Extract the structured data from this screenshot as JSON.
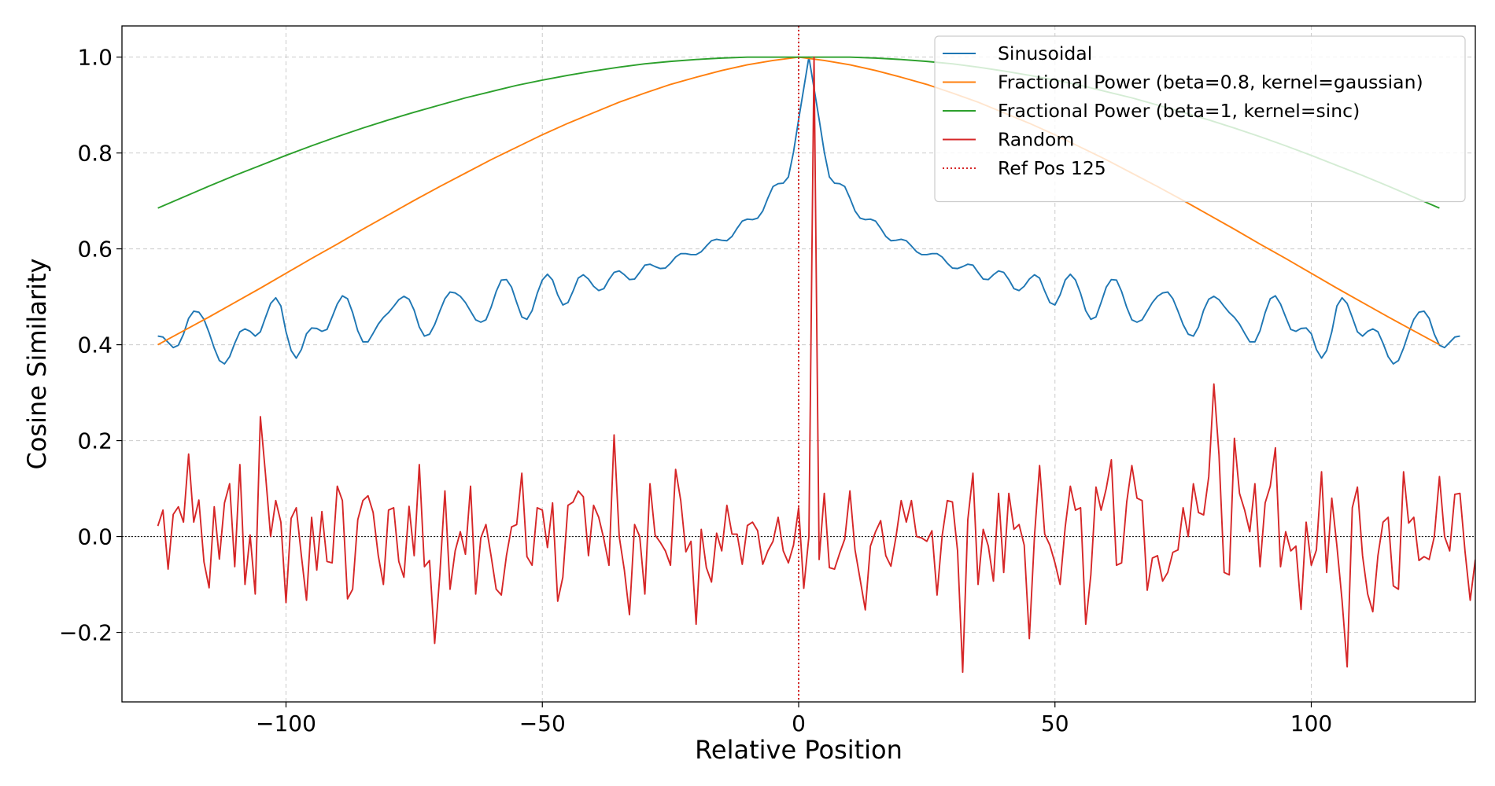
{
  "chart_data": {
    "type": "line",
    "title": "",
    "xlabel": "Relative Position",
    "ylabel": "Cosine Similarity",
    "xlim": [
      -132,
      132
    ],
    "ylim": [
      -0.345,
      1.065
    ],
    "xticks": [
      -100,
      -50,
      0,
      50,
      100
    ],
    "xtick_labels": [
      "−100",
      "−50",
      "0",
      "50",
      "100"
    ],
    "yticks": [
      -0.2,
      0.0,
      0.2,
      0.4,
      0.6,
      0.8,
      1.0
    ],
    "ytick_labels": [
      "−0.2",
      "0.0",
      "0.2",
      "0.4",
      "0.6",
      "0.8",
      "1.0"
    ],
    "grid": true,
    "legend_position": "top-right",
    "zero_line": 0.0,
    "ref_line": {
      "x": 0,
      "label": "Ref Pos 125",
      "color": "#d62728",
      "style": "dotted"
    },
    "series": [
      {
        "name": "Sinusoidal",
        "color": "#1f77b4",
        "x_start": -125,
        "x_step": 1,
        "values": [
          0.418,
          0.416,
          0.405,
          0.394,
          0.399,
          0.422,
          0.455,
          0.47,
          0.468,
          0.453,
          0.425,
          0.393,
          0.367,
          0.36,
          0.375,
          0.403,
          0.427,
          0.433,
          0.428,
          0.418,
          0.427,
          0.457,
          0.486,
          0.498,
          0.481,
          0.427,
          0.388,
          0.372,
          0.39,
          0.423,
          0.435,
          0.434,
          0.428,
          0.432,
          0.458,
          0.485,
          0.502,
          0.496,
          0.467,
          0.429,
          0.406,
          0.406,
          0.424,
          0.443,
          0.457,
          0.467,
          0.48,
          0.494,
          0.501,
          0.495,
          0.472,
          0.437,
          0.418,
          0.422,
          0.442,
          0.47,
          0.496,
          0.51,
          0.508,
          0.501,
          0.488,
          0.47,
          0.452,
          0.447,
          0.452,
          0.478,
          0.511,
          0.535,
          0.536,
          0.52,
          0.488,
          0.458,
          0.453,
          0.471,
          0.507,
          0.535,
          0.547,
          0.535,
          0.504,
          0.483,
          0.488,
          0.512,
          0.539,
          0.546,
          0.537,
          0.522,
          0.513,
          0.517,
          0.536,
          0.551,
          0.554,
          0.546,
          0.536,
          0.537,
          0.551,
          0.566,
          0.568,
          0.563,
          0.559,
          0.56,
          0.57,
          0.583,
          0.59,
          0.59,
          0.588,
          0.588,
          0.594,
          0.606,
          0.617,
          0.62,
          0.618,
          0.617,
          0.626,
          0.643,
          0.658,
          0.662,
          0.661,
          0.664,
          0.679,
          0.706,
          0.73,
          0.736,
          0.737,
          0.75,
          0.802,
          0.87,
          0.935,
          1.0,
          0.935,
          0.87,
          0.802,
          0.75,
          0.737,
          0.736,
          0.73,
          0.706,
          0.679,
          0.664,
          0.661,
          0.662,
          0.658,
          0.643,
          0.626,
          0.617,
          0.618,
          0.62,
          0.617,
          0.606,
          0.594,
          0.588,
          0.588,
          0.59,
          0.59,
          0.583,
          0.57,
          0.56,
          0.559,
          0.563,
          0.568,
          0.566,
          0.551,
          0.537,
          0.536,
          0.546,
          0.554,
          0.551,
          0.536,
          0.517,
          0.513,
          0.522,
          0.537,
          0.546,
          0.539,
          0.512,
          0.488,
          0.483,
          0.504,
          0.535,
          0.547,
          0.535,
          0.507,
          0.471,
          0.453,
          0.458,
          0.488,
          0.52,
          0.536,
          0.535,
          0.511,
          0.478,
          0.452,
          0.447,
          0.452,
          0.47,
          0.488,
          0.501,
          0.508,
          0.51,
          0.496,
          0.47,
          0.442,
          0.422,
          0.418,
          0.437,
          0.472,
          0.495,
          0.501,
          0.494,
          0.48,
          0.467,
          0.457,
          0.443,
          0.424,
          0.406,
          0.406,
          0.429,
          0.467,
          0.496,
          0.502,
          0.485,
          0.458,
          0.432,
          0.428,
          0.434,
          0.435,
          0.423,
          0.39,
          0.372,
          0.388,
          0.427,
          0.481,
          0.498,
          0.486,
          0.457,
          0.427,
          0.418,
          0.428,
          0.433,
          0.427,
          0.403,
          0.375,
          0.36,
          0.367,
          0.393,
          0.425,
          0.453,
          0.468,
          0.47,
          0.455,
          0.422,
          0.399,
          0.394,
          0.405,
          0.416,
          0.418
        ]
      },
      {
        "name": "Fractional Power (beta=0.8, kernel=gaussian)",
        "color": "#ff7f0e",
        "x_start": -125,
        "x_step": 5,
        "values": [
          0.4,
          0.429,
          0.458,
          0.488,
          0.518,
          0.549,
          0.58,
          0.61,
          0.641,
          0.671,
          0.701,
          0.73,
          0.758,
          0.786,
          0.812,
          0.838,
          0.862,
          0.884,
          0.906,
          0.925,
          0.943,
          0.958,
          0.972,
          0.984,
          0.993,
          1.0,
          0.993,
          0.984,
          0.972,
          0.958,
          0.943,
          0.925,
          0.906,
          0.884,
          0.862,
          0.838,
          0.812,
          0.786,
          0.758,
          0.73,
          0.701,
          0.671,
          0.641,
          0.61,
          0.58,
          0.549,
          0.518,
          0.488,
          0.458,
          0.429,
          0.4
        ]
      },
      {
        "name": "Fractional Power (beta=1, kernel=sinc)",
        "color": "#2ca02c",
        "x_start": -125,
        "x_step": 5,
        "values": [
          0.685,
          0.708,
          0.731,
          0.753,
          0.774,
          0.795,
          0.815,
          0.834,
          0.852,
          0.869,
          0.885,
          0.9,
          0.915,
          0.928,
          0.941,
          0.952,
          0.962,
          0.971,
          0.979,
          0.986,
          0.991,
          0.995,
          0.998,
          1.0,
          1.0,
          1.0,
          1.0,
          1.0,
          0.998,
          0.995,
          0.991,
          0.986,
          0.979,
          0.971,
          0.962,
          0.952,
          0.941,
          0.928,
          0.915,
          0.9,
          0.885,
          0.869,
          0.852,
          0.834,
          0.815,
          0.795,
          0.774,
          0.753,
          0.731,
          0.708,
          0.685
        ]
      },
      {
        "name": "Random",
        "color": "#d62728",
        "x_start": -125,
        "x_step": 1,
        "values": [
          0.022,
          0.055,
          -0.068,
          0.046,
          0.062,
          0.03,
          0.172,
          0.03,
          0.076,
          -0.053,
          -0.107,
          0.062,
          -0.047,
          0.07,
          0.11,
          -0.063,
          0.15,
          -0.1,
          0.003,
          -0.12,
          0.25,
          0.13,
          0.0,
          0.075,
          0.03,
          -0.138,
          0.038,
          0.06,
          -0.04,
          -0.133,
          0.04,
          -0.07,
          0.052,
          -0.052,
          -0.055,
          0.105,
          0.075,
          -0.13,
          -0.11,
          0.035,
          0.075,
          0.085,
          0.05,
          -0.04,
          -0.1,
          0.055,
          0.06,
          -0.052,
          -0.085,
          0.063,
          -0.04,
          0.15,
          -0.063,
          -0.05,
          -0.223,
          -0.08,
          0.095,
          -0.11,
          -0.03,
          0.01,
          -0.037,
          0.105,
          -0.12,
          -0.003,
          0.025,
          -0.04,
          -0.11,
          -0.122,
          -0.04,
          0.02,
          0.025,
          0.132,
          -0.042,
          -0.06,
          0.06,
          0.055,
          -0.023,
          0.07,
          -0.135,
          -0.085,
          0.065,
          0.072,
          0.095,
          0.083,
          -0.04,
          0.065,
          0.04,
          -0.005,
          -0.06,
          0.212,
          0.0,
          -0.07,
          -0.163,
          0.025,
          0.0,
          -0.12,
          0.11,
          0.003,
          -0.012,
          -0.03,
          -0.06,
          0.14,
          0.075,
          -0.032,
          -0.01,
          -0.183,
          0.015,
          -0.065,
          -0.095,
          0.007,
          -0.03,
          0.065,
          0.005,
          0.005,
          -0.058,
          0.023,
          0.03,
          0.012,
          -0.058,
          -0.03,
          -0.01,
          0.04,
          -0.03,
          -0.055,
          -0.018,
          0.06,
          -0.108,
          0.0,
          1.0,
          -0.048,
          0.09,
          -0.065,
          -0.068,
          -0.035,
          -0.005,
          0.095,
          -0.028,
          -0.09,
          -0.153,
          -0.02,
          0.01,
          0.033,
          -0.04,
          -0.062,
          0.0,
          0.075,
          0.03,
          0.075,
          0.0,
          -0.003,
          -0.01,
          0.012,
          -0.122,
          0.002,
          0.075,
          0.072,
          -0.03,
          -0.283,
          0.035,
          0.132,
          -0.1,
          0.015,
          -0.02,
          -0.093,
          0.09,
          -0.075,
          0.09,
          0.015,
          0.025,
          -0.018,
          -0.213,
          0.0,
          0.148,
          0.005,
          -0.018,
          -0.055,
          -0.1,
          0.02,
          0.105,
          0.055,
          0.06,
          -0.183,
          -0.08,
          0.103,
          0.055,
          0.1,
          0.16,
          -0.06,
          -0.055,
          0.072,
          0.148,
          0.08,
          0.075,
          -0.112,
          -0.045,
          -0.04,
          -0.093,
          -0.075,
          -0.033,
          -0.028,
          0.06,
          0.0,
          0.11,
          0.05,
          0.045,
          0.125,
          0.318,
          0.17,
          -0.075,
          -0.08,
          0.205,
          0.09,
          0.055,
          0.01,
          0.11,
          -0.063,
          0.07,
          0.105,
          0.185,
          -0.063,
          0.01,
          -0.03,
          -0.02,
          -0.152,
          0.03,
          -0.06,
          -0.028,
          0.135,
          -0.075,
          0.08,
          -0.02,
          -0.133,
          -0.272,
          0.06,
          0.103,
          -0.04,
          -0.12,
          -0.157,
          -0.04,
          0.03,
          0.04,
          -0.103,
          -0.11,
          0.135,
          0.028,
          0.04,
          -0.05,
          -0.042,
          -0.048,
          0.0,
          0.125,
          0.0,
          -0.03,
          0.088,
          0.09,
          -0.032,
          -0.133,
          -0.048
        ]
      }
    ]
  }
}
